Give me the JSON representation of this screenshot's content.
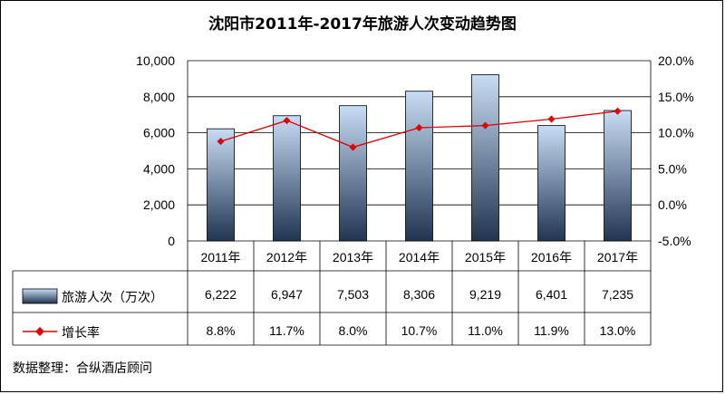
{
  "chart_data": {
    "type": "bar",
    "title": "沈阳市2011年-2017年旅游人次变动趋势图",
    "categories": [
      "2011年",
      "2012年",
      "2013年",
      "2014年",
      "2015年",
      "2016年",
      "2017年"
    ],
    "series": [
      {
        "name": "旅游人次（万次）",
        "type": "bar",
        "axis": "left",
        "values": [
          6222,
          6947,
          7503,
          8306,
          9219,
          6401,
          7235
        ],
        "labels": [
          "6,222",
          "6,947",
          "7,503",
          "8,306",
          "9,219",
          "6,401",
          "7,235"
        ]
      },
      {
        "name": "增长率",
        "type": "line",
        "axis": "right",
        "values": [
          8.8,
          11.7,
          8.0,
          10.7,
          11.0,
          11.9,
          13.0
        ],
        "labels": [
          "8.8%",
          "11.7%",
          "8.0%",
          "10.7%",
          "11.0%",
          "11.9%",
          "13.0%"
        ]
      }
    ],
    "left_axis": {
      "min": 0,
      "max": 10000,
      "step": 2000,
      "tick_labels": [
        "0",
        "2,000",
        "4,000",
        "6,000",
        "8,000",
        "10,000"
      ]
    },
    "right_axis": {
      "min": -5,
      "max": 20,
      "step": 5,
      "tick_labels": [
        "-5.0%",
        "0.0%",
        "5.0%",
        "10.0%",
        "15.0%",
        "20.0%"
      ]
    },
    "grid": true,
    "legend": "data-table",
    "source": "数据整理：合纵酒店顾问",
    "colors": {
      "bar_top": "#c8dcf5",
      "bar_bottom": "#1f3550",
      "line": "#e00000",
      "grid": "#000000"
    }
  }
}
